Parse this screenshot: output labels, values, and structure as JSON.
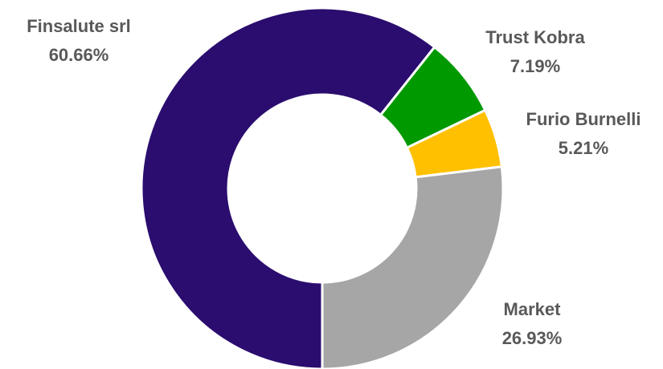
{
  "chart_data": {
    "type": "donut",
    "categories": [
      "Finsalute srl",
      "Trust Kobra",
      "Furio Burnelli",
      "Market"
    ],
    "values": [
      60.66,
      7.19,
      5.21,
      26.93
    ],
    "value_labels": [
      "60.66%",
      "7.19%",
      "5.21%",
      "26.93%"
    ],
    "colors": [
      "#2a0d6e",
      "#009900",
      "#ffc000",
      "#a6a6a6"
    ]
  }
}
